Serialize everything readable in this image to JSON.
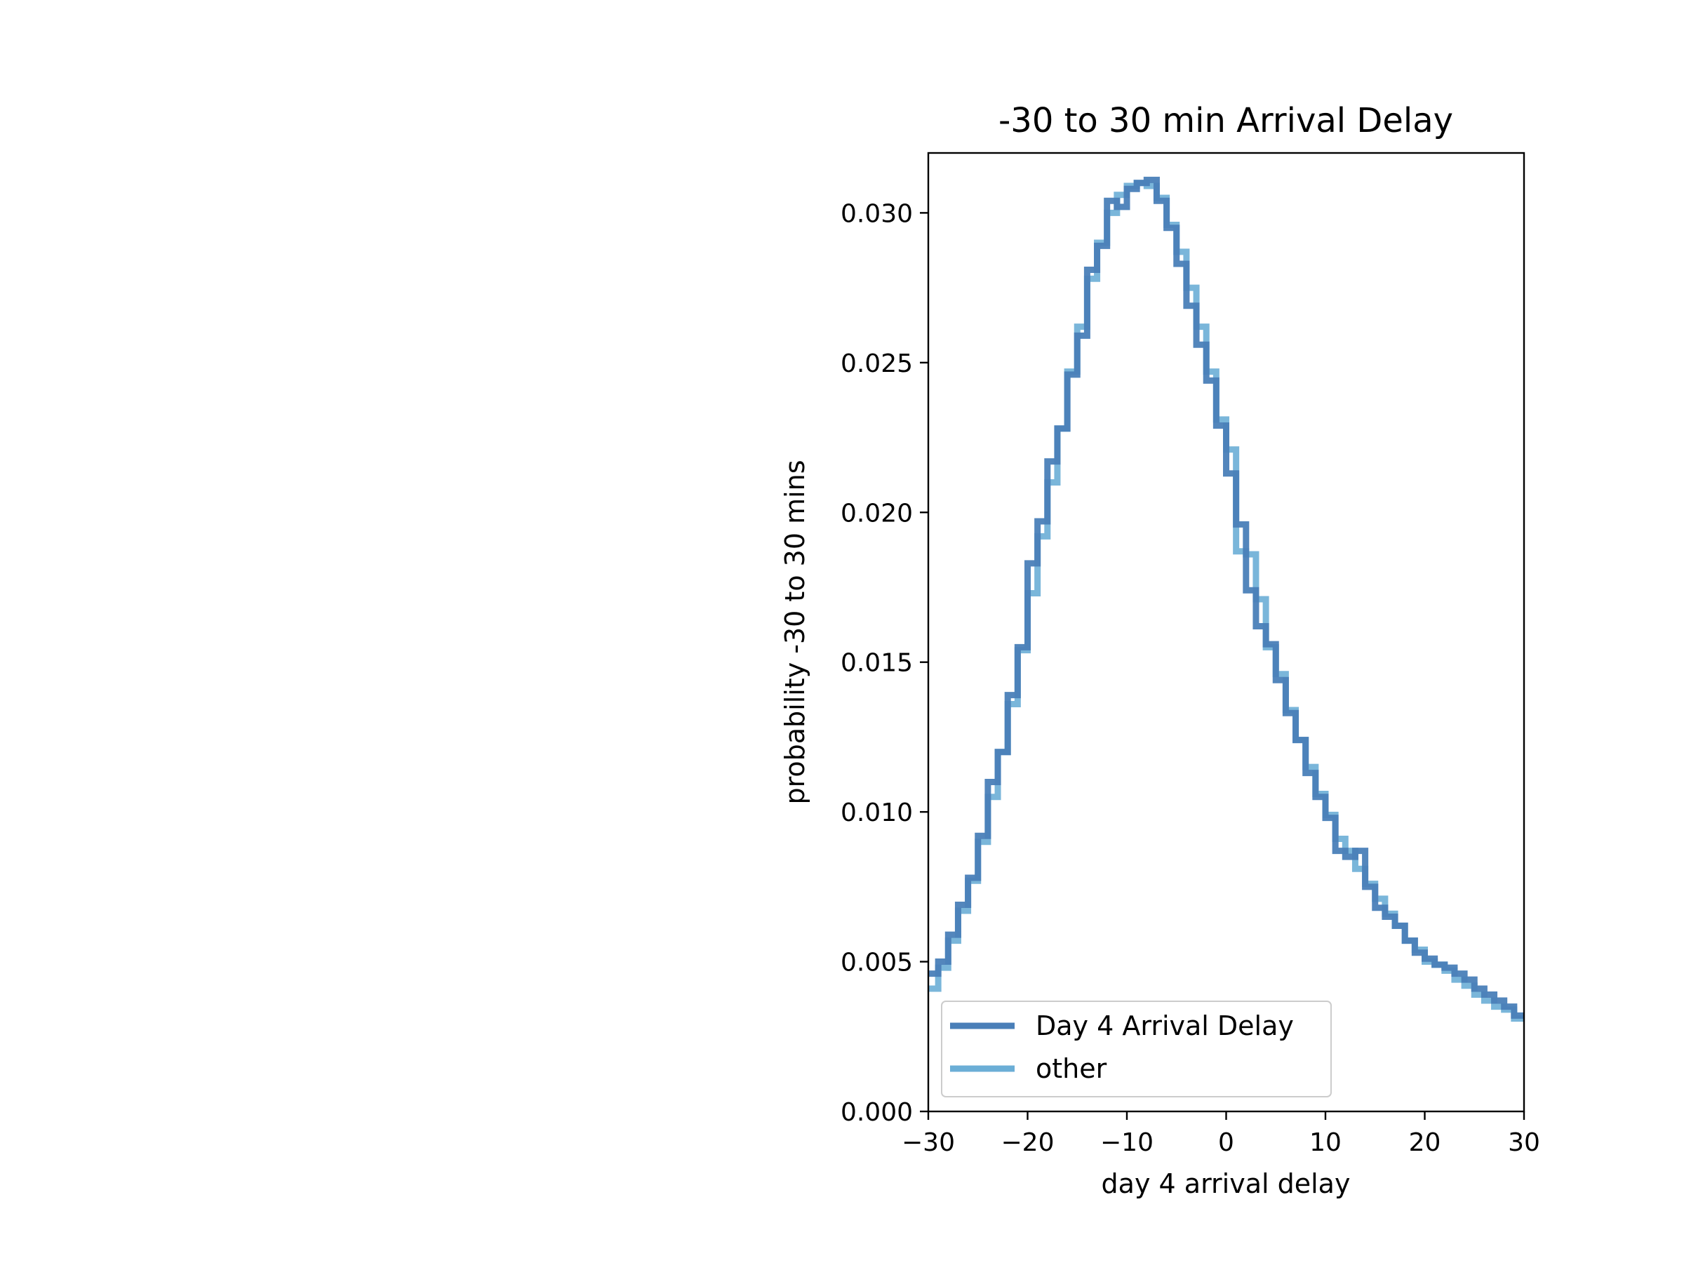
{
  "chart_data": {
    "type": "line",
    "title": "-30 to 30 min Arrival Delay",
    "xlabel": "day 4 arrival delay",
    "ylabel": "probability -30 to 30 mins",
    "xlim": [
      -30,
      30
    ],
    "ylim": [
      0,
      0.032
    ],
    "x_ticks": [
      -30,
      -20,
      -10,
      0,
      10,
      20,
      30
    ],
    "x_tick_labels": [
      "−30",
      "−20",
      "−10",
      "0",
      "10",
      "20",
      "30"
    ],
    "y_ticks": [
      0,
      0.005,
      0.01,
      0.015,
      0.02,
      0.025,
      0.03
    ],
    "y_tick_labels": [
      "0.000",
      "0.005",
      "0.010",
      "0.015",
      "0.020",
      "0.025",
      "0.030"
    ],
    "legend_position": "lower-left",
    "bin_edges": [
      -30,
      -29,
      -28,
      -27,
      -26,
      -25,
      -24,
      -23,
      -22,
      -21,
      -20,
      -19,
      -18,
      -17,
      -16,
      -15,
      -14,
      -13,
      -12,
      -11,
      -10,
      -9,
      -8,
      -7,
      -6,
      -5,
      -4,
      -3,
      -2,
      -1,
      0,
      1,
      2,
      3,
      4,
      5,
      6,
      7,
      8,
      9,
      10,
      11,
      12,
      13,
      14,
      15,
      16,
      17,
      18,
      19,
      20,
      21,
      22,
      23,
      24,
      25,
      26,
      27,
      28,
      29,
      30
    ],
    "series": [
      {
        "name": "Day 4 Arrival Delay",
        "color": "#4a7fb8",
        "values": [
          0.0046,
          0.005,
          0.0059,
          0.0069,
          0.0078,
          0.0092,
          0.011,
          0.012,
          0.0139,
          0.0155,
          0.0183,
          0.0197,
          0.0217,
          0.0228,
          0.0246,
          0.0259,
          0.0281,
          0.0289,
          0.0304,
          0.0302,
          0.0308,
          0.031,
          0.0311,
          0.0304,
          0.0295,
          0.0283,
          0.0269,
          0.0256,
          0.0244,
          0.0229,
          0.0213,
          0.0196,
          0.0174,
          0.0162,
          0.0156,
          0.0144,
          0.0133,
          0.0124,
          0.0113,
          0.0105,
          0.0098,
          0.0087,
          0.0085,
          0.0087,
          0.0075,
          0.0068,
          0.0065,
          0.0062,
          0.0057,
          0.0053,
          0.0051,
          0.0049,
          0.0048,
          0.0046,
          0.0044,
          0.0041,
          0.0039,
          0.0037,
          0.0035,
          0.0032
        ]
      },
      {
        "name": "other",
        "color": "#6baed6",
        "values": [
          0.0041,
          0.0048,
          0.0057,
          0.0067,
          0.0077,
          0.009,
          0.0105,
          0.012,
          0.0136,
          0.0154,
          0.0173,
          0.0192,
          0.021,
          0.0228,
          0.0247,
          0.0262,
          0.0278,
          0.029,
          0.03,
          0.0306,
          0.0309,
          0.031,
          0.0309,
          0.0305,
          0.0296,
          0.0287,
          0.0275,
          0.0262,
          0.0247,
          0.0231,
          0.0221,
          0.0187,
          0.0186,
          0.0171,
          0.0155,
          0.0146,
          0.0134,
          0.0124,
          0.0115,
          0.0106,
          0.0099,
          0.0091,
          0.0087,
          0.0081,
          0.0076,
          0.0071,
          0.0066,
          0.0062,
          0.0057,
          0.0054,
          0.005,
          0.0049,
          0.0047,
          0.0044,
          0.0042,
          0.0039,
          0.0037,
          0.0035,
          0.0034,
          0.0031
        ]
      }
    ]
  }
}
